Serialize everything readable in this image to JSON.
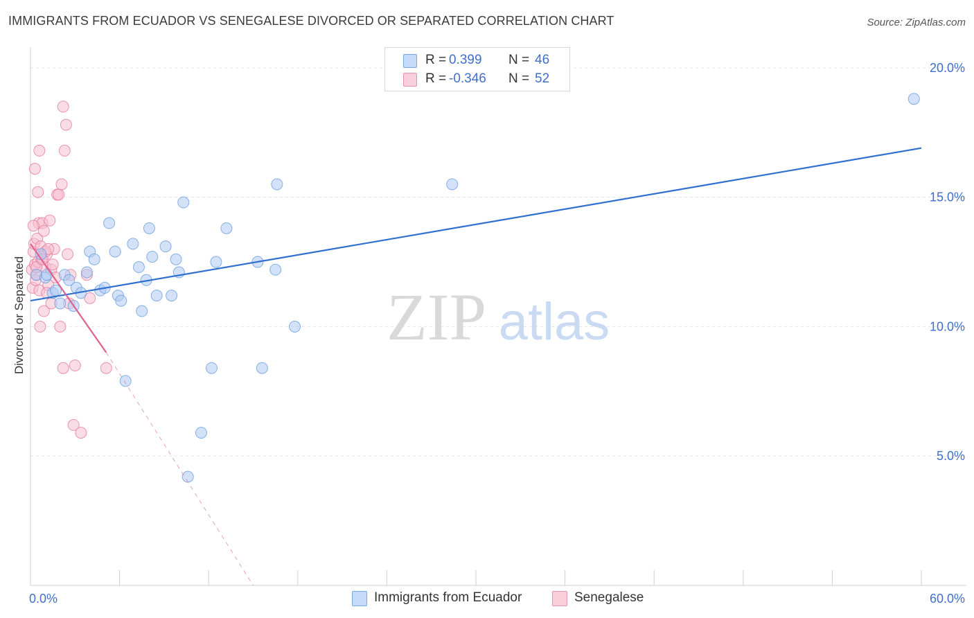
{
  "header": {
    "title": "IMMIGRANTS FROM ECUADOR VS SENEGALESE DIVORCED OR SEPARATED CORRELATION CHART",
    "source": "Source: ZipAtlas.com"
  },
  "watermark": {
    "zip": "ZIP",
    "atlas": "atlas"
  },
  "legend": {
    "r_label": "R =",
    "n_label": "N =",
    "rows": [
      {
        "r": "0.399",
        "n": "46"
      },
      {
        "r": "-0.346",
        "n": "52"
      }
    ]
  },
  "colors": {
    "blue_fill": "#aecbf2",
    "blue_stroke": "#6b9ee0",
    "blue_line": "#2f6fcf",
    "pink_fill": "#f6bfd0",
    "pink_stroke": "#e67ba0",
    "pink_line": "#e06090",
    "tick_text": "#3f6fc9"
  },
  "chart_data": {
    "type": "scatter",
    "title": "IMMIGRANTS FROM ECUADOR VS SENEGALESE DIVORCED OR SEPARATED CORRELATION CHART",
    "xlabel": "",
    "ylabel": "Divorced or Separated",
    "xlim": [
      0,
      60
    ],
    "ylim": [
      0,
      20.8
    ],
    "x_tick_labels": [
      "0.0%",
      "60.0%"
    ],
    "y_ticks": [
      5,
      10,
      15,
      20
    ],
    "y_tick_labels": [
      "5.0%",
      "10.0%",
      "15.0%",
      "20.0%"
    ],
    "grid": true,
    "legend_position": "bottom",
    "series": [
      {
        "name": "Immigrants from Ecuador",
        "color": "blue",
        "r": 0.399,
        "n": 46,
        "trend": {
          "x0": 0,
          "y0": 11.0,
          "x1": 60,
          "y1": 16.9
        },
        "points": [
          [
            0.4,
            12.0
          ],
          [
            0.7,
            12.8
          ],
          [
            1.0,
            11.9
          ],
          [
            1.1,
            12.0
          ],
          [
            1.5,
            11.3
          ],
          [
            1.7,
            11.4
          ],
          [
            2.0,
            10.9
          ],
          [
            2.3,
            12.0
          ],
          [
            2.6,
            11.8
          ],
          [
            2.9,
            10.8
          ],
          [
            3.1,
            11.5
          ],
          [
            3.4,
            11.3
          ],
          [
            3.8,
            12.1
          ],
          [
            4.0,
            12.9
          ],
          [
            4.3,
            12.6
          ],
          [
            4.7,
            11.4
          ],
          [
            5.0,
            11.5
          ],
          [
            5.3,
            14.0
          ],
          [
            5.7,
            12.9
          ],
          [
            5.9,
            11.2
          ],
          [
            6.1,
            11.0
          ],
          [
            6.9,
            13.2
          ],
          [
            7.3,
            12.3
          ],
          [
            7.5,
            10.6
          ],
          [
            7.8,
            11.8
          ],
          [
            8.0,
            13.8
          ],
          [
            8.2,
            12.7
          ],
          [
            8.5,
            11.2
          ],
          [
            9.1,
            13.1
          ],
          [
            9.5,
            11.2
          ],
          [
            9.8,
            12.6
          ],
          [
            10.0,
            12.1
          ],
          [
            10.3,
            14.8
          ],
          [
            11.5,
            5.9
          ],
          [
            12.2,
            8.4
          ],
          [
            12.5,
            12.5
          ],
          [
            13.2,
            13.8
          ],
          [
            15.3,
            12.5
          ],
          [
            15.6,
            8.4
          ],
          [
            16.5,
            12.2
          ],
          [
            16.6,
            15.5
          ],
          [
            17.8,
            10.0
          ],
          [
            28.4,
            15.5
          ],
          [
            10.6,
            4.2
          ],
          [
            6.4,
            7.9
          ],
          [
            59.5,
            18.8
          ]
        ]
      },
      {
        "name": "Senegalese",
        "color": "pink",
        "r": -0.346,
        "n": 52,
        "trend": {
          "x0": 0,
          "y0": 13.2,
          "x1": 5.1,
          "y1": 9.0,
          "dash_x1": 15.0,
          "dash_y1": 0.0
        },
        "points": [
          [
            0.1,
            12.2
          ],
          [
            0.15,
            11.5
          ],
          [
            0.2,
            12.9
          ],
          [
            0.25,
            13.2
          ],
          [
            0.3,
            12.4
          ],
          [
            0.35,
            11.8
          ],
          [
            0.4,
            12.0
          ],
          [
            0.45,
            13.4
          ],
          [
            0.5,
            12.5
          ],
          [
            0.55,
            14.0
          ],
          [
            0.6,
            11.4
          ],
          [
            0.65,
            10.0
          ],
          [
            0.7,
            13.1
          ],
          [
            0.75,
            12.6
          ],
          [
            0.3,
            16.1
          ],
          [
            0.5,
            15.2
          ],
          [
            0.6,
            16.8
          ],
          [
            0.8,
            14.0
          ],
          [
            0.9,
            13.7
          ],
          [
            1.0,
            12.3
          ],
          [
            1.1,
            12.8
          ],
          [
            1.2,
            11.6
          ],
          [
            1.3,
            14.1
          ],
          [
            1.4,
            12.2
          ],
          [
            1.5,
            12.4
          ],
          [
            1.6,
            13.0
          ],
          [
            1.7,
            11.9
          ],
          [
            1.8,
            15.1
          ],
          [
            1.9,
            15.1
          ],
          [
            2.0,
            10.0
          ],
          [
            2.1,
            15.5
          ],
          [
            2.2,
            18.5
          ],
          [
            2.3,
            16.8
          ],
          [
            2.4,
            17.8
          ],
          [
            2.5,
            12.8
          ],
          [
            2.6,
            10.9
          ],
          [
            2.7,
            12.0
          ],
          [
            0.9,
            10.6
          ],
          [
            1.0,
            12.9
          ],
          [
            1.1,
            11.3
          ],
          [
            1.4,
            10.9
          ],
          [
            1.2,
            13.0
          ],
          [
            2.2,
            8.4
          ],
          [
            3.0,
            8.5
          ],
          [
            3.8,
            12.0
          ],
          [
            4.0,
            11.1
          ],
          [
            5.1,
            8.4
          ],
          [
            2.9,
            6.2
          ],
          [
            3.4,
            5.9
          ],
          [
            0.2,
            13.9
          ],
          [
            0.4,
            12.3
          ],
          [
            0.8,
            12.6
          ]
        ]
      }
    ]
  }
}
